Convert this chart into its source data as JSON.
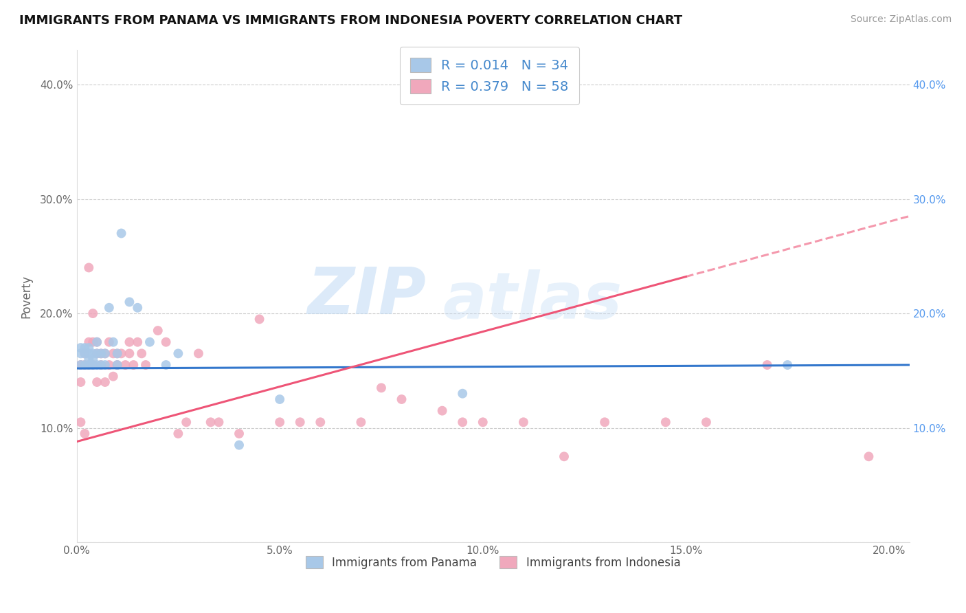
{
  "title": "IMMIGRANTS FROM PANAMA VS IMMIGRANTS FROM INDONESIA POVERTY CORRELATION CHART",
  "source": "Source: ZipAtlas.com",
  "ylabel": "Poverty",
  "xlim": [
    0.0,
    0.205
  ],
  "ylim": [
    0.0,
    0.43
  ],
  "x_ticks": [
    0.0,
    0.05,
    0.1,
    0.15,
    0.2
  ],
  "x_tick_labels": [
    "0.0%",
    "5.0%",
    "10.0%",
    "15.0%",
    "20.0%"
  ],
  "y_ticks": [
    0.0,
    0.1,
    0.2,
    0.3,
    0.4
  ],
  "y_tick_labels_left": [
    "",
    "10.0%",
    "20.0%",
    "30.0%",
    "40.0%"
  ],
  "y_tick_labels_right": [
    "",
    "10.0%",
    "20.0%",
    "30.0%",
    "40.0%"
  ],
  "panama_R": 0.014,
  "panama_N": 34,
  "indonesia_R": 0.379,
  "indonesia_N": 58,
  "panama_color": "#a8c8e8",
  "indonesia_color": "#f0a8bc",
  "panama_line_color": "#3377cc",
  "indonesia_line_color": "#ee5577",
  "watermark_zip": "ZIP",
  "watermark_atlas": "atlas",
  "panama_line_x": [
    0.0,
    0.205
  ],
  "panama_line_y": [
    0.152,
    0.155
  ],
  "indonesia_line_x": [
    0.0,
    0.205
  ],
  "indonesia_line_y": [
    0.088,
    0.285
  ],
  "panama_x": [
    0.001,
    0.001,
    0.001,
    0.002,
    0.002,
    0.002,
    0.003,
    0.003,
    0.003,
    0.003,
    0.004,
    0.004,
    0.004,
    0.005,
    0.005,
    0.005,
    0.006,
    0.006,
    0.007,
    0.007,
    0.008,
    0.009,
    0.01,
    0.01,
    0.011,
    0.013,
    0.015,
    0.018,
    0.022,
    0.025,
    0.04,
    0.05,
    0.095,
    0.175
  ],
  "panama_y": [
    0.17,
    0.165,
    0.155,
    0.17,
    0.165,
    0.155,
    0.17,
    0.165,
    0.155,
    0.16,
    0.165,
    0.16,
    0.155,
    0.175,
    0.165,
    0.155,
    0.165,
    0.155,
    0.165,
    0.155,
    0.205,
    0.175,
    0.165,
    0.155,
    0.27,
    0.21,
    0.205,
    0.175,
    0.155,
    0.165,
    0.085,
    0.125,
    0.13,
    0.155
  ],
  "indonesia_x": [
    0.001,
    0.001,
    0.001,
    0.002,
    0.002,
    0.002,
    0.003,
    0.003,
    0.003,
    0.004,
    0.004,
    0.004,
    0.005,
    0.005,
    0.005,
    0.006,
    0.006,
    0.007,
    0.007,
    0.008,
    0.008,
    0.009,
    0.009,
    0.01,
    0.01,
    0.011,
    0.012,
    0.013,
    0.013,
    0.014,
    0.015,
    0.016,
    0.017,
    0.02,
    0.022,
    0.025,
    0.027,
    0.03,
    0.033,
    0.035,
    0.04,
    0.045,
    0.05,
    0.055,
    0.06,
    0.07,
    0.075,
    0.08,
    0.09,
    0.095,
    0.1,
    0.11,
    0.12,
    0.13,
    0.145,
    0.155,
    0.17,
    0.195
  ],
  "indonesia_y": [
    0.155,
    0.14,
    0.105,
    0.165,
    0.155,
    0.095,
    0.24,
    0.175,
    0.155,
    0.2,
    0.175,
    0.155,
    0.175,
    0.165,
    0.14,
    0.165,
    0.155,
    0.165,
    0.14,
    0.175,
    0.155,
    0.165,
    0.145,
    0.165,
    0.155,
    0.165,
    0.155,
    0.175,
    0.165,
    0.155,
    0.175,
    0.165,
    0.155,
    0.185,
    0.175,
    0.095,
    0.105,
    0.165,
    0.105,
    0.105,
    0.095,
    0.195,
    0.105,
    0.105,
    0.105,
    0.105,
    0.135,
    0.125,
    0.115,
    0.105,
    0.105,
    0.105,
    0.075,
    0.105,
    0.105,
    0.105,
    0.155,
    0.075
  ]
}
